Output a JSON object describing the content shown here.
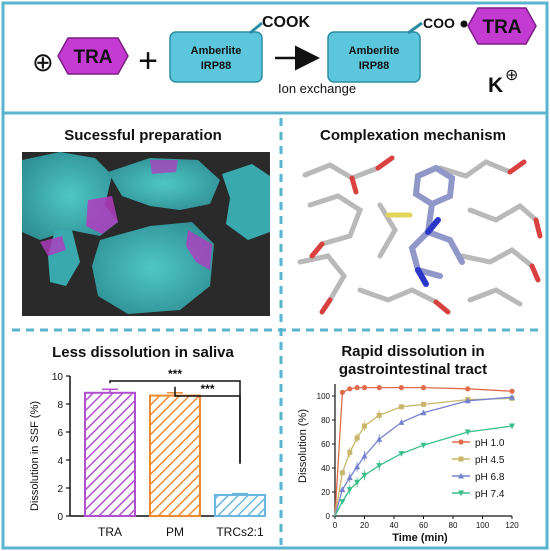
{
  "top": {
    "reactant_label": "TRA",
    "resin_label_line1": "Amberlite",
    "resin_label_line2": "IRP88",
    "resin_group": "COOK",
    "process_label": "Ion exchange",
    "product_label_line1": "Amberlite",
    "product_label_line2": "IRP88",
    "product_group": "COO",
    "product_drug": "TRA",
    "counter_ion": "K",
    "plus_symbol": "+",
    "positive_charge_symbol": "⊕",
    "arrow_icon": "right-arrow-icon"
  },
  "panels": {
    "preparation_title": "Sucessful preparation",
    "mechanism_title": "Complexation mechanism",
    "saliva_title": "Less dissolution in saliva",
    "gi_title_line1": "Rapid dissolution in",
    "gi_title_line2": "gastrointestinal tract"
  },
  "colors": {
    "border": "#5bb4cf",
    "tra": "#c33bd1",
    "resin": "#5cc7dc",
    "bar_tra": "#b04fd0",
    "bar_pm": "#ee8a2f",
    "bar_trc": "#6ab6e0",
    "ph10": "#e06c4c",
    "ph45": "#c8b76a",
    "ph68": "#7582d0",
    "ph74": "#3bbf8b"
  },
  "chart_data": [
    {
      "type": "bar",
      "title": "Less dissolution in saliva",
      "categories": [
        "TRA",
        "PM",
        "TRCs2:1"
      ],
      "values": [
        8.8,
        8.6,
        1.5
      ],
      "errors": [
        0.25,
        0.2,
        0.1
      ],
      "ylabel": "Dissolution in SSF (%)",
      "ylim": [
        0,
        10
      ],
      "yticks": [
        "0",
        "2",
        "4",
        "6",
        "8",
        "10"
      ],
      "significance": [
        "***",
        "***"
      ]
    },
    {
      "type": "line",
      "title": "Rapid dissolution in gastrointestinal tract",
      "xlabel": "Time (min)",
      "ylabel": "Dissolution (%)",
      "xlim": [
        0,
        120
      ],
      "ylim": [
        0,
        110
      ],
      "xticks": [
        "0",
        "20",
        "40",
        "60",
        "80",
        "100",
        "120"
      ],
      "yticks": [
        "0",
        "20",
        "40",
        "60",
        "80",
        "100"
      ],
      "legend_position": "right",
      "series": [
        {
          "name": "pH 1.0",
          "x": [
            0,
            5,
            10,
            15,
            20,
            30,
            45,
            60,
            90,
            120
          ],
          "y": [
            0,
            103,
            106,
            107,
            107,
            107,
            107,
            107,
            106,
            104
          ]
        },
        {
          "name": "pH 4.5",
          "x": [
            0,
            5,
            10,
            15,
            20,
            30,
            45,
            60,
            90,
            120
          ],
          "y": [
            0,
            36,
            53,
            65,
            75,
            84,
            91,
            93,
            97,
            98
          ]
        },
        {
          "name": "pH 6.8",
          "x": [
            0,
            5,
            10,
            15,
            20,
            30,
            45,
            60,
            90,
            120
          ],
          "y": [
            0,
            22,
            32,
            41,
            50,
            64,
            78,
            86,
            96,
            99
          ]
        },
        {
          "name": "pH 7.4",
          "x": [
            0,
            5,
            10,
            15,
            20,
            30,
            45,
            60,
            90,
            120
          ],
          "y": [
            0,
            12,
            22,
            28,
            34,
            42,
            52,
            59,
            70,
            75
          ]
        }
      ]
    }
  ]
}
